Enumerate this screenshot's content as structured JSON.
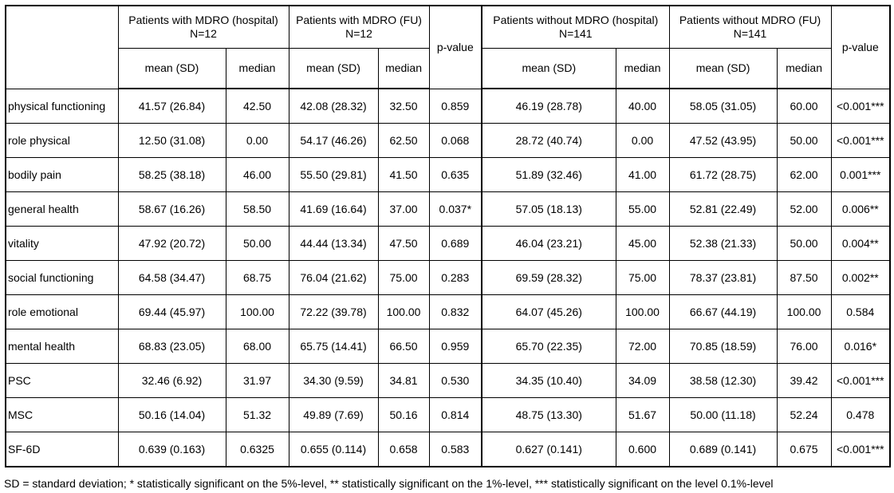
{
  "table": {
    "groups": [
      {
        "title": "Patients with MDRO (hospital)",
        "n": "N=12"
      },
      {
        "title": "Patients with MDRO (FU)",
        "n": "N=12"
      },
      {
        "title": "Patients without MDRO (hospital)",
        "n": "N=141"
      },
      {
        "title": "Patients without MDRO (FU)",
        "n": "N=141"
      }
    ],
    "pvalue_label": "p-value",
    "sub_mean": "mean (SD)",
    "sub_median": "median",
    "rows": [
      {
        "label": "physical functioning",
        "cells": [
          "41.57 (26.84)",
          "42.50",
          "42.08 (28.32)",
          "32.50",
          "0.859",
          "46.19 (28.78)",
          "40.00",
          "58.05 (31.05)",
          "60.00",
          "<0.001***"
        ]
      },
      {
        "label": "role physical",
        "cells": [
          "12.50 (31.08)",
          "0.00",
          "54.17 (46.26)",
          "62.50",
          "0.068",
          "28.72 (40.74)",
          "0.00",
          "47.52 (43.95)",
          "50.00",
          "<0.001***"
        ]
      },
      {
        "label": "bodily pain",
        "cells": [
          "58.25 (38.18)",
          "46.00",
          "55.50 (29.81)",
          "41.50",
          "0.635",
          "51.89 (32.46)",
          "41.00",
          "61.72 (28.75)",
          "62.00",
          "0.001***"
        ]
      },
      {
        "label": "general health",
        "cells": [
          "58.67 (16.26)",
          "58.50",
          "41.69 (16.64)",
          "37.00",
          "0.037*",
          "57.05 (18.13)",
          "55.00",
          "52.81 (22.49)",
          "52.00",
          "0.006**"
        ]
      },
      {
        "label": "vitality",
        "cells": [
          "47.92 (20.72)",
          "50.00",
          "44.44 (13.34)",
          "47.50",
          "0.689",
          "46.04 (23.21)",
          "45.00",
          "52.38 (21.33)",
          "50.00",
          "0.004**"
        ]
      },
      {
        "label": "social functioning",
        "cells": [
          "64.58 (34.47)",
          "68.75",
          "76.04 (21.62)",
          "75.00",
          "0.283",
          "69.59 (28.32)",
          "75.00",
          "78.37 (23.81)",
          "87.50",
          "0.002**"
        ]
      },
      {
        "label": "role emotional",
        "cells": [
          "69.44 (45.97)",
          "100.00",
          "72.22 (39.78)",
          "100.00",
          "0.832",
          "64.07 (45.26)",
          "100.00",
          "66.67 (44.19)",
          "100.00",
          "0.584"
        ]
      },
      {
        "label": "mental health",
        "cells": [
          "68.83 (23.05)",
          "68.00",
          "65.75 (14.41)",
          "66.50",
          "0.959",
          "65.70 (22.35)",
          "72.00",
          "70.85 (18.59)",
          "76.00",
          "0.016*"
        ]
      },
      {
        "label": "PSC",
        "cells": [
          "32.46 (6.92)",
          "31.97",
          "34.30 (9.59)",
          "34.81",
          "0.530",
          "34.35 (10.40)",
          "34.09",
          "38.58 (12.30)",
          "39.42",
          "<0.001***"
        ]
      },
      {
        "label": "MSC",
        "cells": [
          "50.16 (14.04)",
          "51.32",
          "49.89 (7.69)",
          "50.16",
          "0.814",
          "48.75 (13.30)",
          "51.67",
          "50.00 (11.18)",
          "52.24",
          "0.478"
        ]
      },
      {
        "label": "SF-6D",
        "cells": [
          "0.639 (0.163)",
          "0.6325",
          "0.655 (0.114)",
          "0.658",
          "0.583",
          "0.627 (0.141)",
          "0.600",
          "0.689 (0.141)",
          "0.675",
          "<0.001***"
        ]
      }
    ]
  },
  "footnote": "SD = standard deviation; * statistically significant on the 5%-level, ** statistically significant on the 1%-level, *** statistically significant on the level 0.1%-level"
}
